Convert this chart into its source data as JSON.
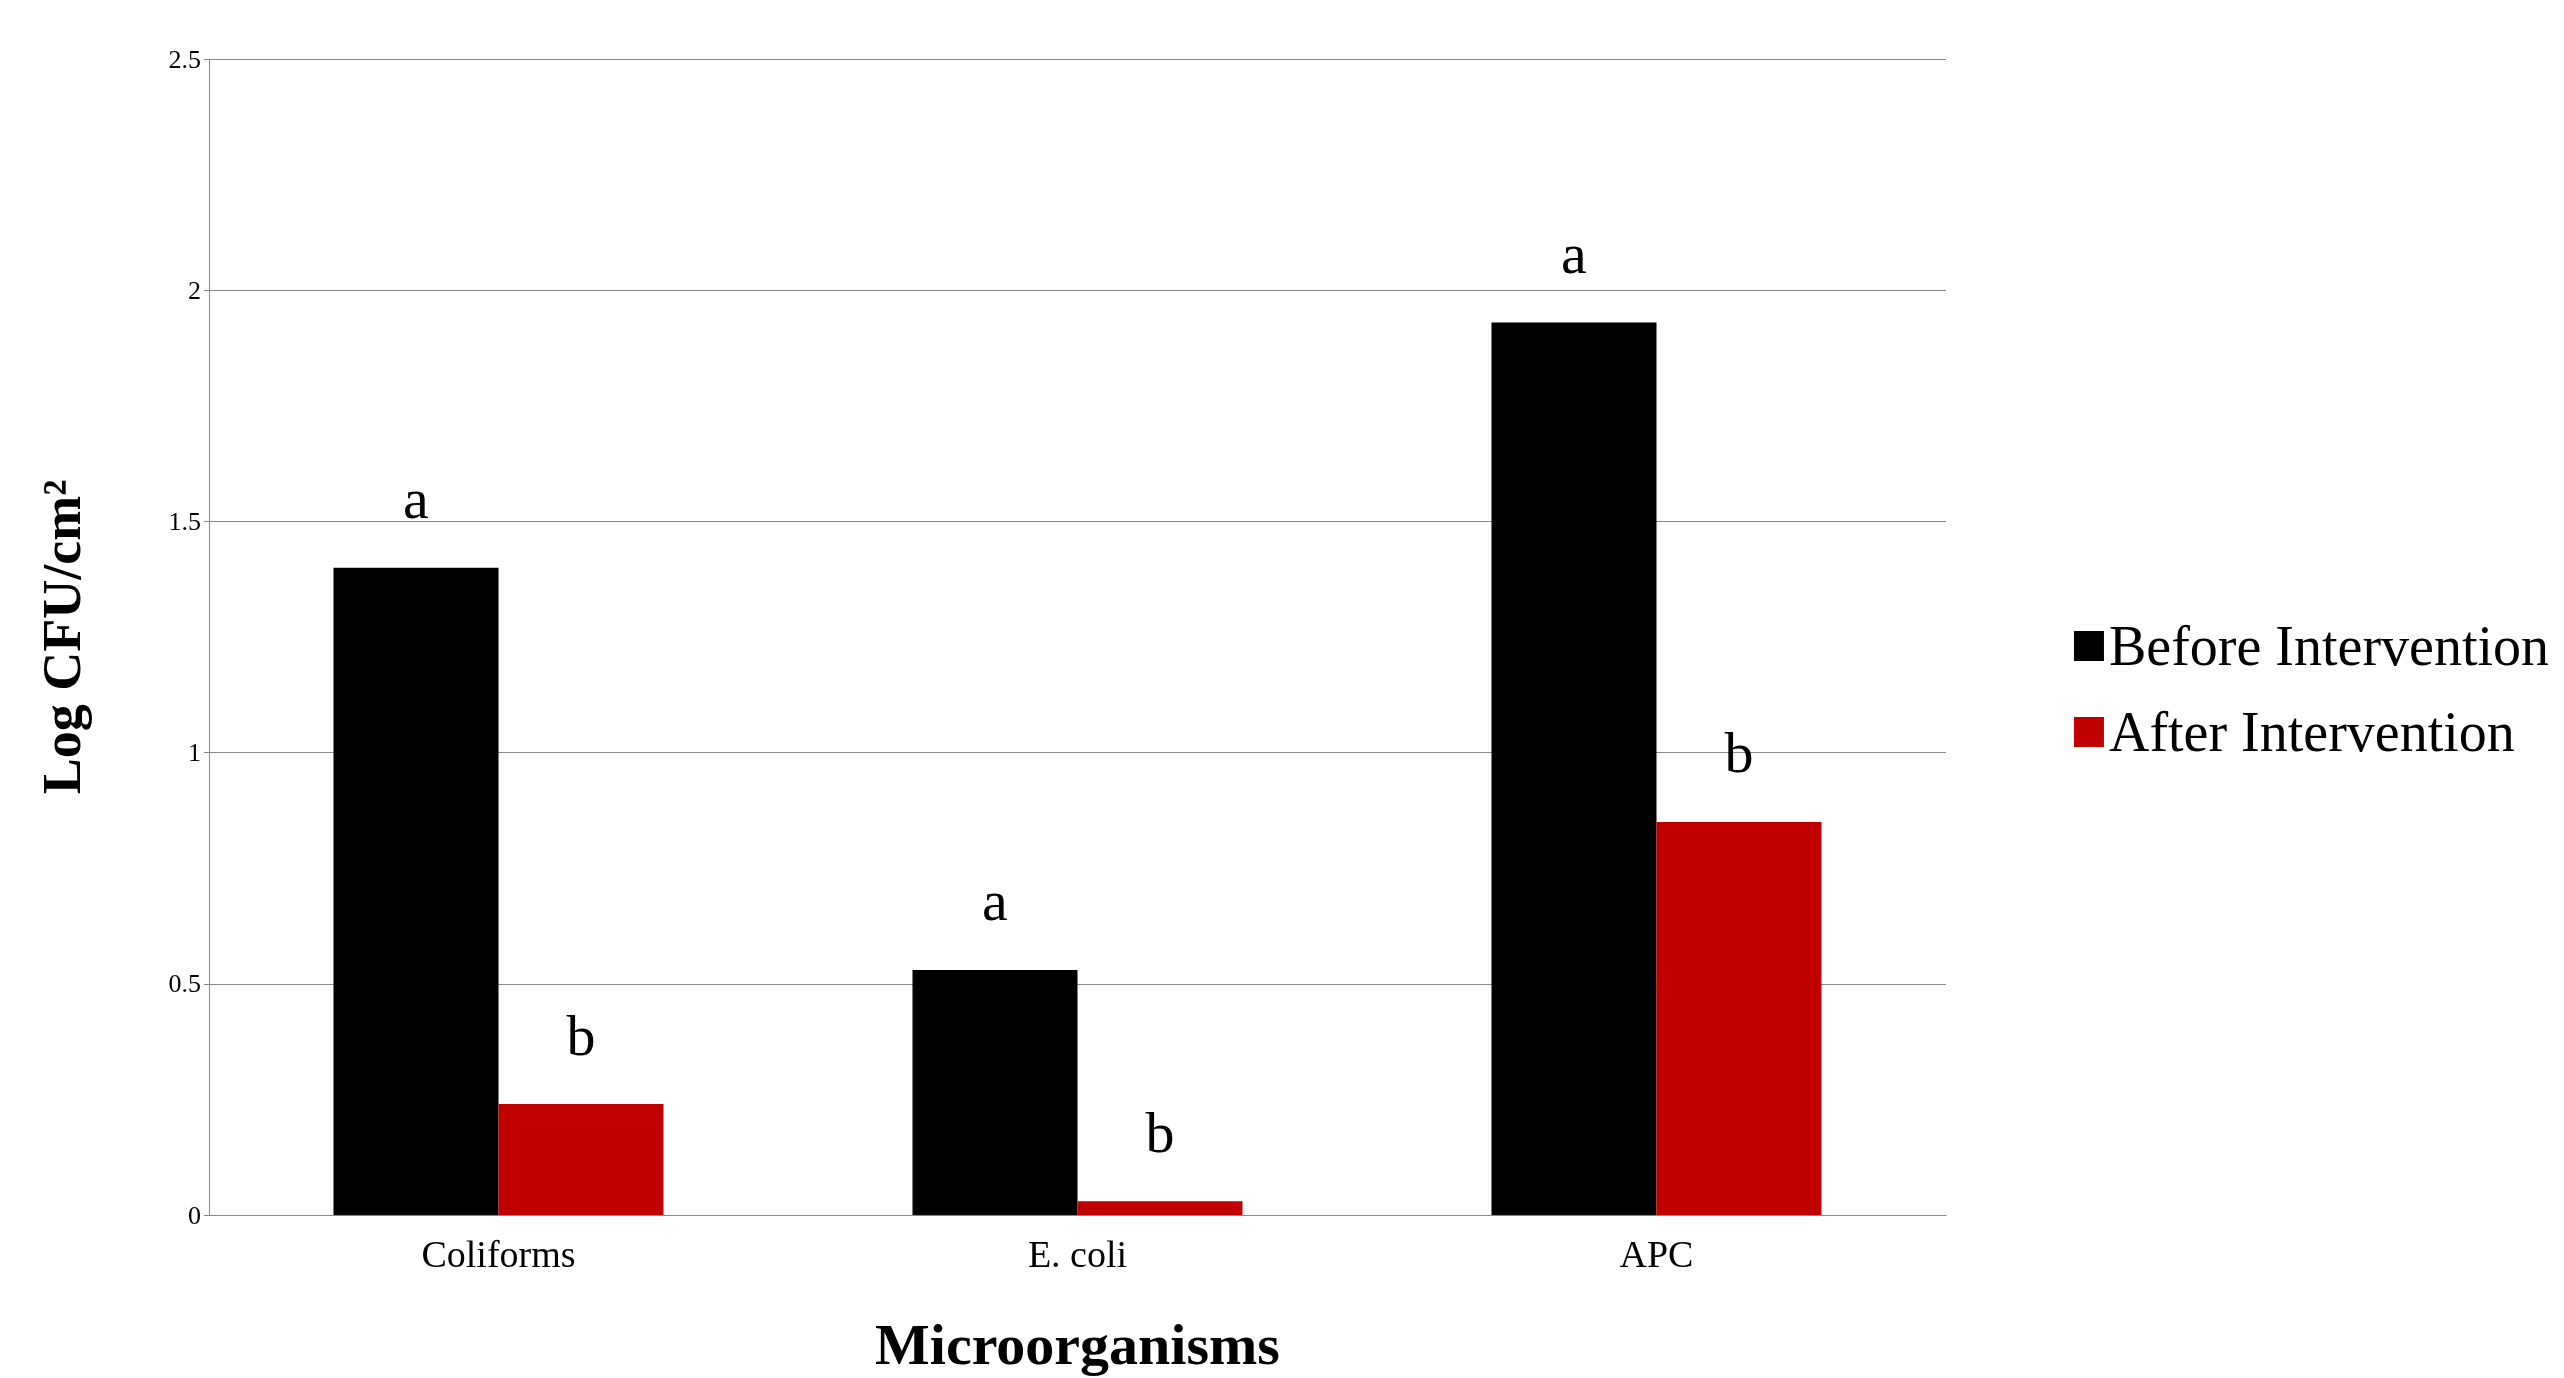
{
  "chart_data": {
    "type": "bar",
    "xlabel": "Microorganisms",
    "ylabel": "Log CFU/cm²",
    "categories": [
      "Coliforms",
      "E. coli",
      "APC"
    ],
    "series": [
      {
        "name": "Before Intervention",
        "color": "#000000",
        "values": [
          1.4,
          0.53,
          1.93
        ]
      },
      {
        "name": "After Intervention",
        "color": "#c00000",
        "values": [
          0.24,
          0.03,
          0.85
        ]
      }
    ],
    "ylim": [
      0,
      2.5
    ],
    "yticks": [
      0,
      0.5,
      1,
      1.5,
      2,
      2.5
    ],
    "grid": "y",
    "legend": "right",
    "annotations": [
      {
        "text": "a",
        "x": "Coliforms",
        "y": 1.4
      },
      {
        "text": "b",
        "x": "Coliforms",
        "y": 0.24
      },
      {
        "text": "a",
        "x": "E. coli",
        "y": 0.53
      },
      {
        "text": "b",
        "x": "E. coli",
        "y": 0.03
      },
      {
        "text": "a",
        "x": "APC",
        "y": 1.93
      },
      {
        "text": "b",
        "x": "APC",
        "y": 0.85
      }
    ]
  }
}
